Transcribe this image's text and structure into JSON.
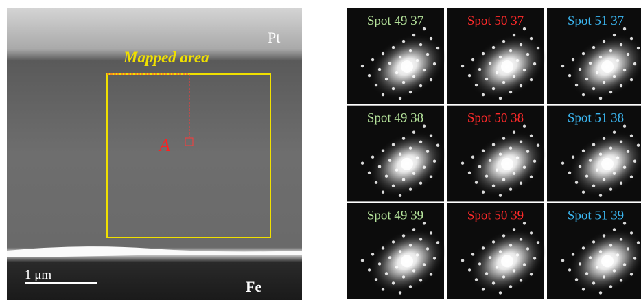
{
  "left_panel": {
    "top_layer": "Pt",
    "mapped_area": "Mapped area",
    "point": "A",
    "scale_bar": "1 μm",
    "bottom_layer": "Fe"
  },
  "diffraction_grid": {
    "cells": [
      {
        "label": "Spot 49 37",
        "color": "#b5e39b"
      },
      {
        "label": "Spot 50 37",
        "color": "#ff2a2a"
      },
      {
        "label": "Spot 51 37",
        "color": "#3bb6f0"
      },
      {
        "label": "Spot 49 38",
        "color": "#b5e39b"
      },
      {
        "label": "Spot 50 38",
        "color": "#ff2a2a"
      },
      {
        "label": "Spot 51 38",
        "color": "#3bb6f0"
      },
      {
        "label": "Spot 49 39",
        "color": "#b5e39b"
      },
      {
        "label": "Spot 50 39",
        "color": "#ff2a2a"
      },
      {
        "label": "Spot 51 39",
        "color": "#3bb6f0"
      }
    ]
  }
}
